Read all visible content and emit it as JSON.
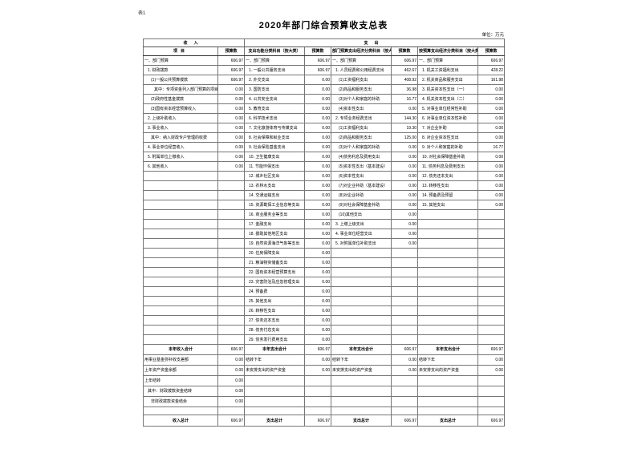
{
  "page": {
    "corner_label": "表1",
    "title": "2020年部门综合预算收支总表",
    "unit_note": "单位：万元"
  },
  "table_header": {
    "income_group": "收入",
    "expense_group": "支出",
    "columns": {
      "item": "项目",
      "budget": "预算数",
      "func": "支出功能分类科目（按大类）",
      "dept_econ": "部门预算支出经济分类科目（按大类）",
      "gov_econ": "按预算支出经济分类科目（按大类）"
    }
  },
  "grid_row_count": 30,
  "grid": {
    "income": [
      {
        "label": "一、部门预算",
        "indent": 0,
        "value": "606.97"
      },
      {
        "label": "1. 财政拨款",
        "indent": 1,
        "value": "606.97"
      },
      {
        "label": "(1)一般公共预算拨款",
        "indent": 2,
        "value": "606.97"
      },
      {
        "label": "其中：专项资金列入部门预算的项目",
        "indent": 3,
        "value": "0.00"
      },
      {
        "label": "(2)政府性基金拨款",
        "indent": 2,
        "value": "0.00"
      },
      {
        "label": "(3)国有资本经营预算收入",
        "indent": 2,
        "value": "0.00"
      },
      {
        "label": "2. 上级补助收入",
        "indent": 1,
        "value": "0.00"
      },
      {
        "label": "3. 事业收入",
        "indent": 1,
        "value": "0.00"
      },
      {
        "label": "其中：纳入财政专户管理的收费",
        "indent": 2,
        "value": "0.00"
      },
      {
        "label": "4. 事业单位经营收入",
        "indent": 1,
        "value": "0.00"
      },
      {
        "label": "5. 附属单位上缴收入",
        "indent": 1,
        "value": "0.00"
      },
      {
        "label": "6. 其他收入",
        "indent": 1,
        "value": "0.00"
      }
    ],
    "func": [
      {
        "label": "一、部门预算",
        "indent": 0,
        "value": "606.97"
      },
      {
        "label": "1. 一般公共服务支出",
        "indent": 1,
        "value": "606.97"
      },
      {
        "label": "2. 外交支出",
        "indent": 1,
        "value": "0.00"
      },
      {
        "label": "3. 国防支出",
        "indent": 1,
        "value": "0.00"
      },
      {
        "label": "4. 公共安全支出",
        "indent": 1,
        "value": "0.00"
      },
      {
        "label": "5. 教育支出",
        "indent": 1,
        "value": "0.00"
      },
      {
        "label": "6. 科学技术支出",
        "indent": 1,
        "value": "0.00"
      },
      {
        "label": "7. 文化旅游体育与传媒支出",
        "indent": 1,
        "value": "0.00"
      },
      {
        "label": "8. 社会保障和就业支出",
        "indent": 1,
        "value": "0.00"
      },
      {
        "label": "9. 社会保险基金支出",
        "indent": 1,
        "value": "0.00"
      },
      {
        "label": "10. 卫生健康支出",
        "indent": 1,
        "value": "0.00"
      },
      {
        "label": "11. 节能环保支出",
        "indent": 1,
        "value": "0.00"
      },
      {
        "label": "12. 城乡社区支出",
        "indent": 1,
        "value": "0.00"
      },
      {
        "label": "13. 农林水支出",
        "indent": 1,
        "value": "0.00"
      },
      {
        "label": "14. 交通运输支出",
        "indent": 1,
        "value": "0.00"
      },
      {
        "label": "15. 资源勘探工业信息等支出",
        "indent": 1,
        "value": "0.00"
      },
      {
        "label": "16. 商业服务业等支出",
        "indent": 1,
        "value": "0.00"
      },
      {
        "label": "17. 金融支出",
        "indent": 1,
        "value": "0.00"
      },
      {
        "label": "18. 援助其他地区支出",
        "indent": 1,
        "value": "0.00"
      },
      {
        "label": "19. 自然资源海洋气象等支出",
        "indent": 1,
        "value": "0.00"
      },
      {
        "label": "20. 住房保障支出",
        "indent": 1,
        "value": "0.00"
      },
      {
        "label": "21. 粮油物资储备支出",
        "indent": 1,
        "value": "0.00"
      },
      {
        "label": "22. 国有资本经营预算支出",
        "indent": 1,
        "value": "0.00"
      },
      {
        "label": "23. 灾害防治及应急管理支出",
        "indent": 1,
        "value": "0.00"
      },
      {
        "label": "24. 预备费",
        "indent": 1,
        "value": "0.00"
      },
      {
        "label": "25. 其他支出",
        "indent": 1,
        "value": "0.00"
      },
      {
        "label": "26. 转移性支出",
        "indent": 1,
        "value": "0.00"
      },
      {
        "label": "27. 债务还本支出",
        "indent": 1,
        "value": "0.00"
      },
      {
        "label": "28. 债务付息支出",
        "indent": 1,
        "value": "0.00"
      },
      {
        "label": "29. 债务发行费用支出",
        "indent": 1,
        "value": "0.00"
      }
    ],
    "dept_econ": [
      {
        "label": "一、部门预算",
        "indent": 0,
        "value": "606.97"
      },
      {
        "label": "1. 人员经费和公用经费支出",
        "indent": 1,
        "value": "462.67"
      },
      {
        "label": "(1)工资福利支出",
        "indent": 2,
        "value": "408.92"
      },
      {
        "label": "(2)商品和服务支出",
        "indent": 2,
        "value": "36.98"
      },
      {
        "label": "(3)对个人和家庭的补助",
        "indent": 2,
        "value": "16.77"
      },
      {
        "label": "(4)资本性支出",
        "indent": 2,
        "value": "0.00"
      },
      {
        "label": "2. 专项业务经费支出",
        "indent": 1,
        "value": "144.30"
      },
      {
        "label": "(1)工资福利支出",
        "indent": 2,
        "value": "19.30"
      },
      {
        "label": "(2)商品和服务支出",
        "indent": 2,
        "value": "125.00"
      },
      {
        "label": "(3)对个人和家庭的补助",
        "indent": 2,
        "value": "0.00"
      },
      {
        "label": "(4)债务利息及费用支出",
        "indent": 2,
        "value": "0.00"
      },
      {
        "label": "(5)资本性支出（基本建设）",
        "indent": 2,
        "value": "0.00"
      },
      {
        "label": "(6)资本性支出",
        "indent": 2,
        "value": "0.00"
      },
      {
        "label": "(7)对企业补助（基本建设）",
        "indent": 2,
        "value": "0.00"
      },
      {
        "label": "(8)对企业补助",
        "indent": 2,
        "value": "0.00"
      },
      {
        "label": "(9)对社会保障基金补助",
        "indent": 2,
        "value": "0.00"
      },
      {
        "label": "(10)其他支出",
        "indent": 2,
        "value": "0.00"
      },
      {
        "label": "3. 上缴上级支出",
        "indent": 1,
        "value": "0.00"
      },
      {
        "label": "4. 事业单位经营支出",
        "indent": 1,
        "value": "0.00"
      },
      {
        "label": "5. 对附属单位补助支出",
        "indent": 1,
        "value": "0.00"
      }
    ],
    "gov_econ": [
      {
        "label": "一、部门预算",
        "indent": 0,
        "value": "606.97"
      },
      {
        "label": "1. 机关工资福利支出",
        "indent": 1,
        "value": "428.22"
      },
      {
        "label": "2. 机关商品和服务支出",
        "indent": 1,
        "value": "161.98"
      },
      {
        "label": "3. 机关资本性支出（一）",
        "indent": 1,
        "value": "0.00"
      },
      {
        "label": "4. 机关资本性支出（二）",
        "indent": 1,
        "value": "0.00"
      },
      {
        "label": "5. 对事业单位经常性补助",
        "indent": 1,
        "value": "0.00"
      },
      {
        "label": "6. 对事业单位资本性补助",
        "indent": 1,
        "value": "0.00"
      },
      {
        "label": "7. 对企业补助",
        "indent": 1,
        "value": "0.00"
      },
      {
        "label": "8. 对企业资本性支出",
        "indent": 1,
        "value": "0.00"
      },
      {
        "label": "9. 对个人和家庭的补助",
        "indent": 1,
        "value": "16.77"
      },
      {
        "label": "10. 对社会保障基金补助",
        "indent": 1,
        "value": "0.00"
      },
      {
        "label": "11. 债务利息及费用支出",
        "indent": 1,
        "value": "0.00"
      },
      {
        "label": "12. 债务还本支出",
        "indent": 1,
        "value": "0.00"
      },
      {
        "label": "13. 转移性支出",
        "indent": 1,
        "value": "0.00"
      },
      {
        "label": "14. 预备费及预留",
        "indent": 1,
        "value": "0.00"
      },
      {
        "label": "15. 其他支出",
        "indent": 1,
        "value": "0.00"
      }
    ]
  },
  "summary_rows": [
    {
      "emphasis": true,
      "income": {
        "label": "本年收入合计",
        "value": "606.97"
      },
      "func": {
        "label": "本年支出合计",
        "value": "606.97"
      },
      "dept": {
        "label": "本年支出合计",
        "value": "606.97"
      },
      "gov": {
        "label": "本年支出合计",
        "value": "606.97"
      }
    },
    {
      "income": {
        "label": "用事业基金弥补收支差额",
        "value": "0.00"
      },
      "func": {
        "label": "结转下年",
        "value": "0.00"
      },
      "dept": {
        "label": "结转下年",
        "value": "0.00"
      },
      "gov": {
        "label": "结转下年",
        "value": "0.00"
      }
    },
    {
      "income": {
        "label": "上年资产资金余额",
        "value": "0.00"
      },
      "func": {
        "label": "未安排支出的资产资金",
        "value": "0.00"
      },
      "dept": {
        "label": "未安排支出的资产资金",
        "value": "0.00"
      },
      "gov": {
        "label": "未安排支出的资产资金",
        "value": "0.00"
      }
    },
    {
      "income": {
        "label": "上年结转",
        "value": "0.00"
      },
      "func": {
        "label": "",
        "value": ""
      },
      "dept": {
        "label": "",
        "value": ""
      },
      "gov": {
        "label": "",
        "value": ""
      }
    },
    {
      "income": {
        "label": "其中：财政拨款资金结转",
        "value": "0.00",
        "indent": 1
      },
      "func": {
        "label": "",
        "value": ""
      },
      "dept": {
        "label": "",
        "value": ""
      },
      "gov": {
        "label": "",
        "value": ""
      }
    },
    {
      "income": {
        "label": "非财政拨款资金结余",
        "value": "0.00",
        "indent": 2
      },
      "func": {
        "label": "",
        "value": ""
      },
      "dept": {
        "label": "",
        "value": ""
      },
      "gov": {
        "label": "",
        "value": ""
      }
    },
    {
      "blank": true,
      "income": {
        "label": "",
        "value": ""
      },
      "func": {
        "label": "",
        "value": ""
      },
      "dept": {
        "label": "",
        "value": ""
      },
      "gov": {
        "label": "",
        "value": ""
      }
    },
    {
      "emphasis": true,
      "income": {
        "label": "收入总计",
        "value": "606.97"
      },
      "func": {
        "label": "支出总计",
        "value": "606.97"
      },
      "dept": {
        "label": "支出总计",
        "value": "606.97"
      },
      "gov": {
        "label": "支出总计",
        "value": "606.97"
      }
    }
  ]
}
